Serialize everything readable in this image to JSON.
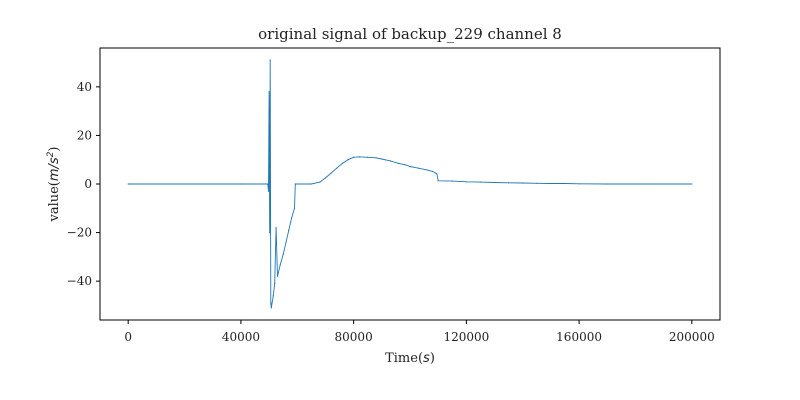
{
  "chart_data": {
    "type": "line",
    "title": "original signal of backup_229 channel 8",
    "xlabel": {
      "text": "Time",
      "unit": "s"
    },
    "ylabel": {
      "text": "value",
      "unit": "m/s",
      "unit_power": "2"
    },
    "xlim": [
      -10000,
      210000
    ],
    "ylim": [
      -56,
      56
    ],
    "xticks": [
      0,
      40000,
      80000,
      120000,
      160000,
      200000
    ],
    "xtick_labels": [
      "0",
      "40000",
      "80000",
      "120000",
      "160000",
      "200000"
    ],
    "yticks": [
      -40,
      -20,
      0,
      20,
      40
    ],
    "ytick_labels": [
      "−40",
      "−20",
      "0",
      "20",
      "40"
    ],
    "grid": false,
    "series_color": "#1f77b4",
    "series": [
      {
        "values": [
          [
            0,
            0
          ],
          [
            40000,
            0
          ],
          [
            49500,
            0
          ],
          [
            49800,
            -3
          ],
          [
            50000,
            38
          ],
          [
            50200,
            -20
          ],
          [
            50400,
            51
          ],
          [
            50600,
            -49
          ],
          [
            50800,
            -51
          ],
          [
            51500,
            -46
          ],
          [
            52000,
            -41
          ],
          [
            52500,
            -18
          ],
          [
            53000,
            -38
          ],
          [
            54000,
            -33
          ],
          [
            55000,
            -29
          ],
          [
            56000,
            -24
          ],
          [
            57000,
            -19
          ],
          [
            58000,
            -14
          ],
          [
            59000,
            -10
          ],
          [
            59300,
            0
          ],
          [
            65000,
            0
          ],
          [
            68000,
            0.8
          ],
          [
            70000,
            2.5
          ],
          [
            72000,
            4.5
          ],
          [
            74000,
            6.5
          ],
          [
            76000,
            8.5
          ],
          [
            78000,
            10
          ],
          [
            80000,
            11
          ],
          [
            82000,
            11.2
          ],
          [
            85000,
            11
          ],
          [
            88000,
            10.8
          ],
          [
            90000,
            10.3
          ],
          [
            93000,
            9.5
          ],
          [
            96000,
            8.5
          ],
          [
            98000,
            8
          ],
          [
            100000,
            7.2
          ],
          [
            103000,
            6.5
          ],
          [
            106000,
            5.8
          ],
          [
            108000,
            5.2
          ],
          [
            109500,
            4.2
          ],
          [
            110000,
            1.3
          ],
          [
            115000,
            1.2
          ],
          [
            120000,
            0.9
          ],
          [
            125000,
            0.8
          ],
          [
            130000,
            0.6
          ],
          [
            135000,
            0.5
          ],
          [
            140000,
            0.4
          ],
          [
            145000,
            0.3
          ],
          [
            150000,
            0.2
          ],
          [
            155000,
            0.2
          ],
          [
            160000,
            0.1
          ],
          [
            170000,
            0
          ],
          [
            185000,
            0
          ],
          [
            200000,
            0
          ]
        ]
      }
    ]
  }
}
